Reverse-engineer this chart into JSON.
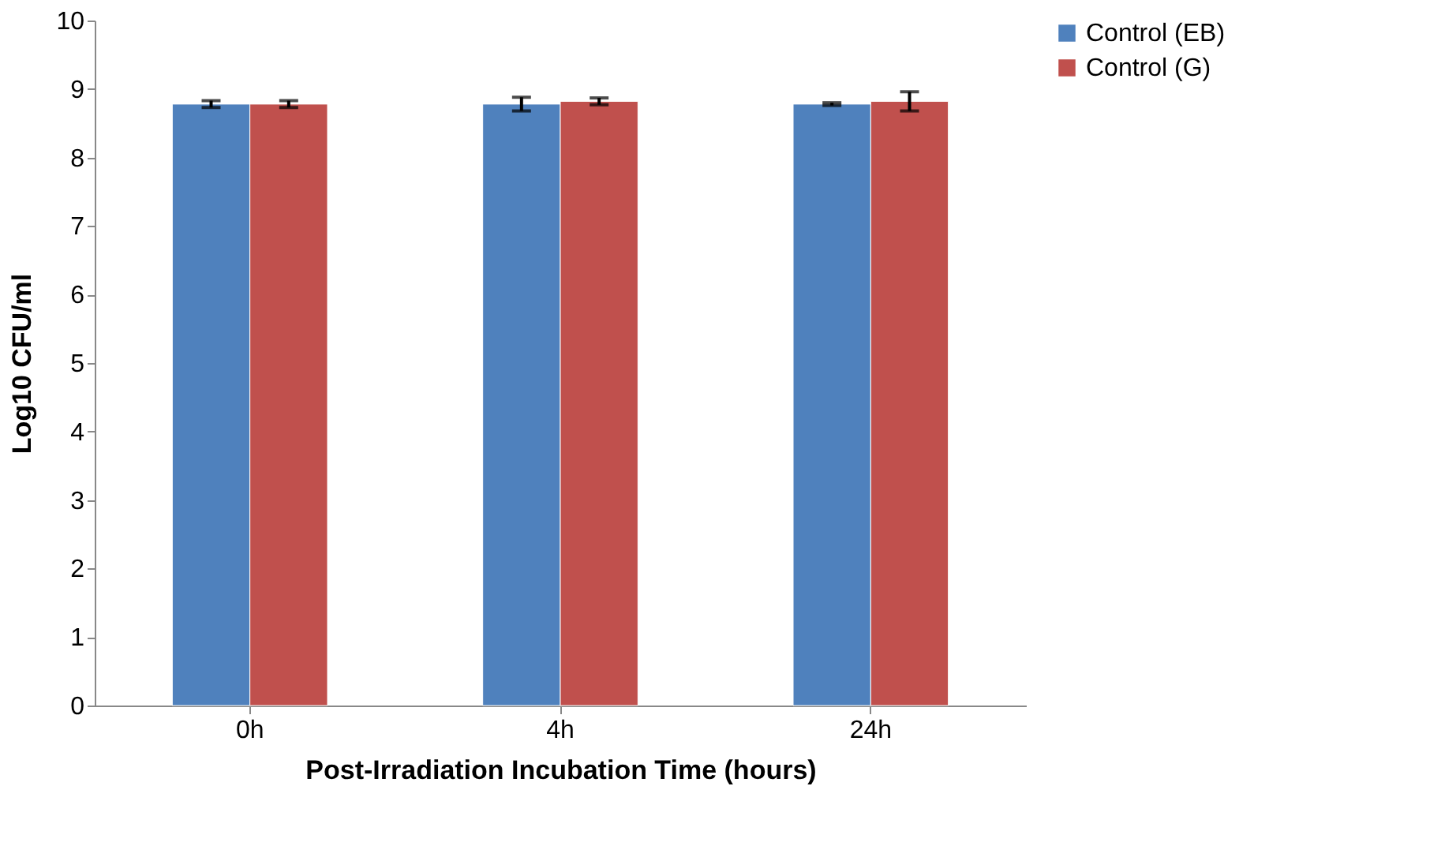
{
  "chart_data": {
    "type": "bar",
    "xlabel": "Post-Irradiation Incubation Time (hours)",
    "ylabel": "Log10 CFU/ml",
    "categories": [
      "0h",
      "4h",
      "24h"
    ],
    "series": [
      {
        "name": "Control (EB)",
        "color": "#4f81bd",
        "values": [
          8.78,
          8.78,
          8.78
        ],
        "errors": [
          0.05,
          0.1,
          0.02
        ]
      },
      {
        "name": "Control (G)",
        "color": "#c0504d",
        "values": [
          8.78,
          8.82,
          8.82
        ],
        "errors": [
          0.05,
          0.05,
          0.14
        ]
      }
    ],
    "ylim": [
      0,
      10
    ],
    "yticks": [
      0,
      1,
      2,
      3,
      4,
      5,
      6,
      7,
      8,
      9,
      10
    ],
    "legend": "right",
    "grid": false
  }
}
